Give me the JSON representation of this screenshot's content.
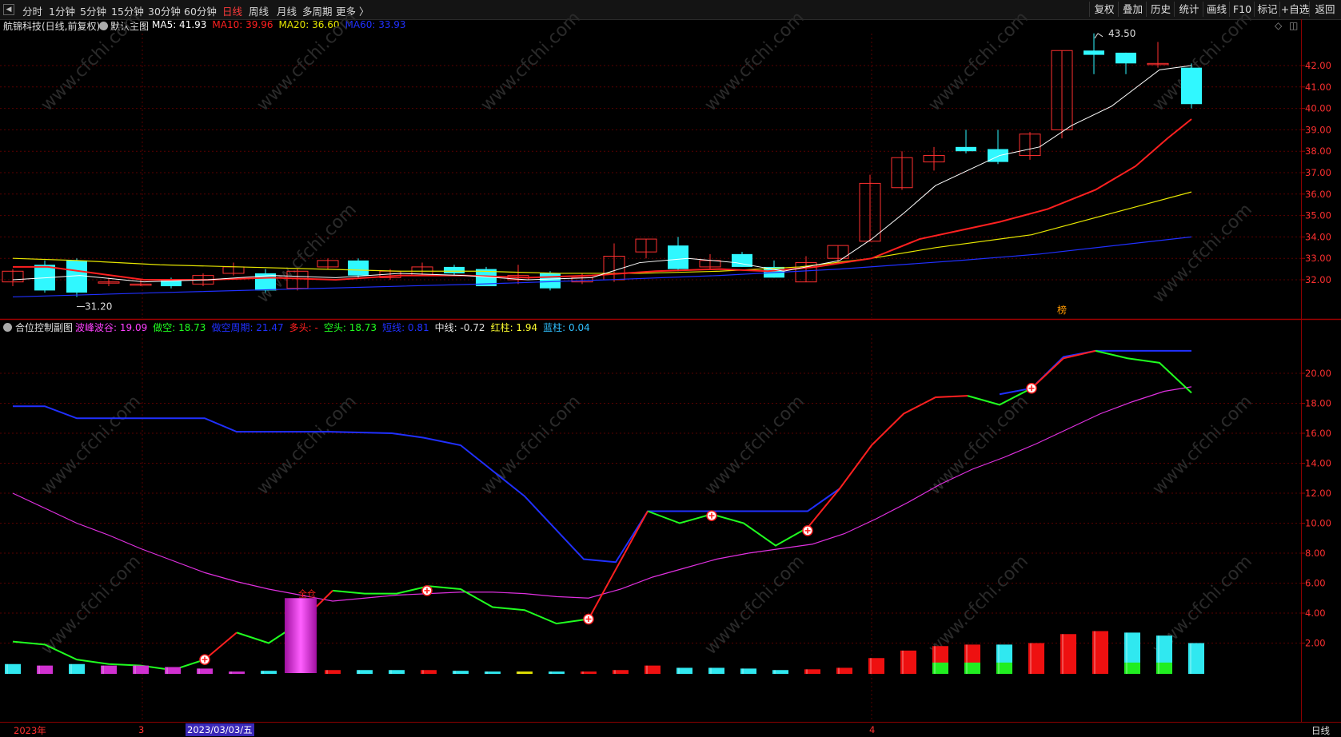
{
  "toolbar": {
    "periods": [
      "分时",
      "1分钟",
      "5分钟",
      "15分钟",
      "30分钟",
      "60分钟",
      "日线",
      "周线",
      "月线",
      "多周期",
      "更多 〉"
    ],
    "active_period": "日线",
    "right_buttons": [
      "复权",
      "叠加",
      "历史",
      "统计",
      "画线",
      "F10",
      "标记",
      "+自选",
      "返回"
    ]
  },
  "main_chart": {
    "stock_name": "航锦科技(日线,前复权)",
    "indicator_name": "默认主图",
    "ma": [
      {
        "label": "MA5: 41.93",
        "color": "#ffffff"
      },
      {
        "label": "MA10: 39.96",
        "color": "#ff2020"
      },
      {
        "label": "MA20: 36.60",
        "color": "#e6e600"
      },
      {
        "label": "MA60: 33.93",
        "color": "#2030ff"
      }
    ],
    "y_ticks": [
      "42.00",
      "41.00",
      "40.00",
      "39.00",
      "38.00",
      "37.00",
      "36.00",
      "35.00",
      "34.00",
      "33.00",
      "32.00"
    ],
    "high_label": "43.50",
    "low_label": "31.20",
    "mark_label": "榜"
  },
  "sub_chart": {
    "indicator_name": "合位控制副图",
    "values": [
      {
        "label": "波峰波谷: 19.09",
        "color": "#ff40ff"
      },
      {
        "label": "做空: 18.73",
        "color": "#20ff20"
      },
      {
        "label": "做空周期: 21.47",
        "color": "#2030ff"
      },
      {
        "label": "多头: -",
        "color": "#ff2020"
      },
      {
        "label": "空头: 18.73",
        "color": "#20ff20"
      },
      {
        "label": "短线: 0.81",
        "color": "#2030ff"
      },
      {
        "label": "中线: -0.72",
        "color": "#e0e0e0"
      },
      {
        "label": "红柱: 1.94",
        "color": "#ffff30"
      },
      {
        "label": "蓝柱: 0.04",
        "color": "#30c0ff"
      }
    ],
    "y_ticks": [
      "20.00",
      "18.00",
      "16.00",
      "14.00",
      "12.00",
      "10.00",
      "8.00",
      "6.00",
      "4.00",
      "2.00"
    ],
    "annotation": "全仓"
  },
  "date_axis": {
    "labels": [
      "2023年",
      "3",
      "2023/03/03/五",
      "4"
    ],
    "period_label": "日线"
  },
  "watermark": "www.cfchi.com"
}
